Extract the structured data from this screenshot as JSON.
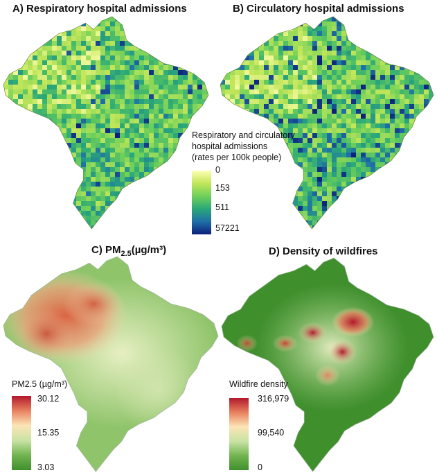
{
  "panels": {
    "a": {
      "title": "A) Respiratory hospital admissions"
    },
    "b": {
      "title": "B) Circulatory hospital admissions"
    },
    "c": {
      "title_main": "C) PM",
      "title_sub": "2.5",
      "title_unit": "(µg/m³)"
    },
    "d": {
      "title": "D) Density of wildfires"
    }
  },
  "legend_admissions": {
    "title_lines": [
      "Respiratory and circulatory",
      "hospital admissions",
      "(rates per 100k people)"
    ],
    "ticks": [
      "0",
      "153",
      "511",
      "57221"
    ],
    "colors": [
      "#ffffb2",
      "#c2e65a",
      "#6fd05a",
      "#2aa878",
      "#1f6fa8",
      "#0d1f7a"
    ]
  },
  "legend_pm": {
    "title": "PM2.5 (µg/m³)",
    "ticks": [
      "30.12",
      "15.35",
      "3.03"
    ],
    "colors": [
      "#b2182b",
      "#e8815f",
      "#fce5b6",
      "#c9e3a4",
      "#72b451",
      "#3f8f2d"
    ]
  },
  "legend_fire": {
    "title": "Wildfire density",
    "ticks": [
      "316,979",
      "99,540",
      "0"
    ],
    "colors": [
      "#b2182b",
      "#e8815f",
      "#fce5b6",
      "#c9e3a4",
      "#72b451",
      "#3f8f2d"
    ]
  }
}
